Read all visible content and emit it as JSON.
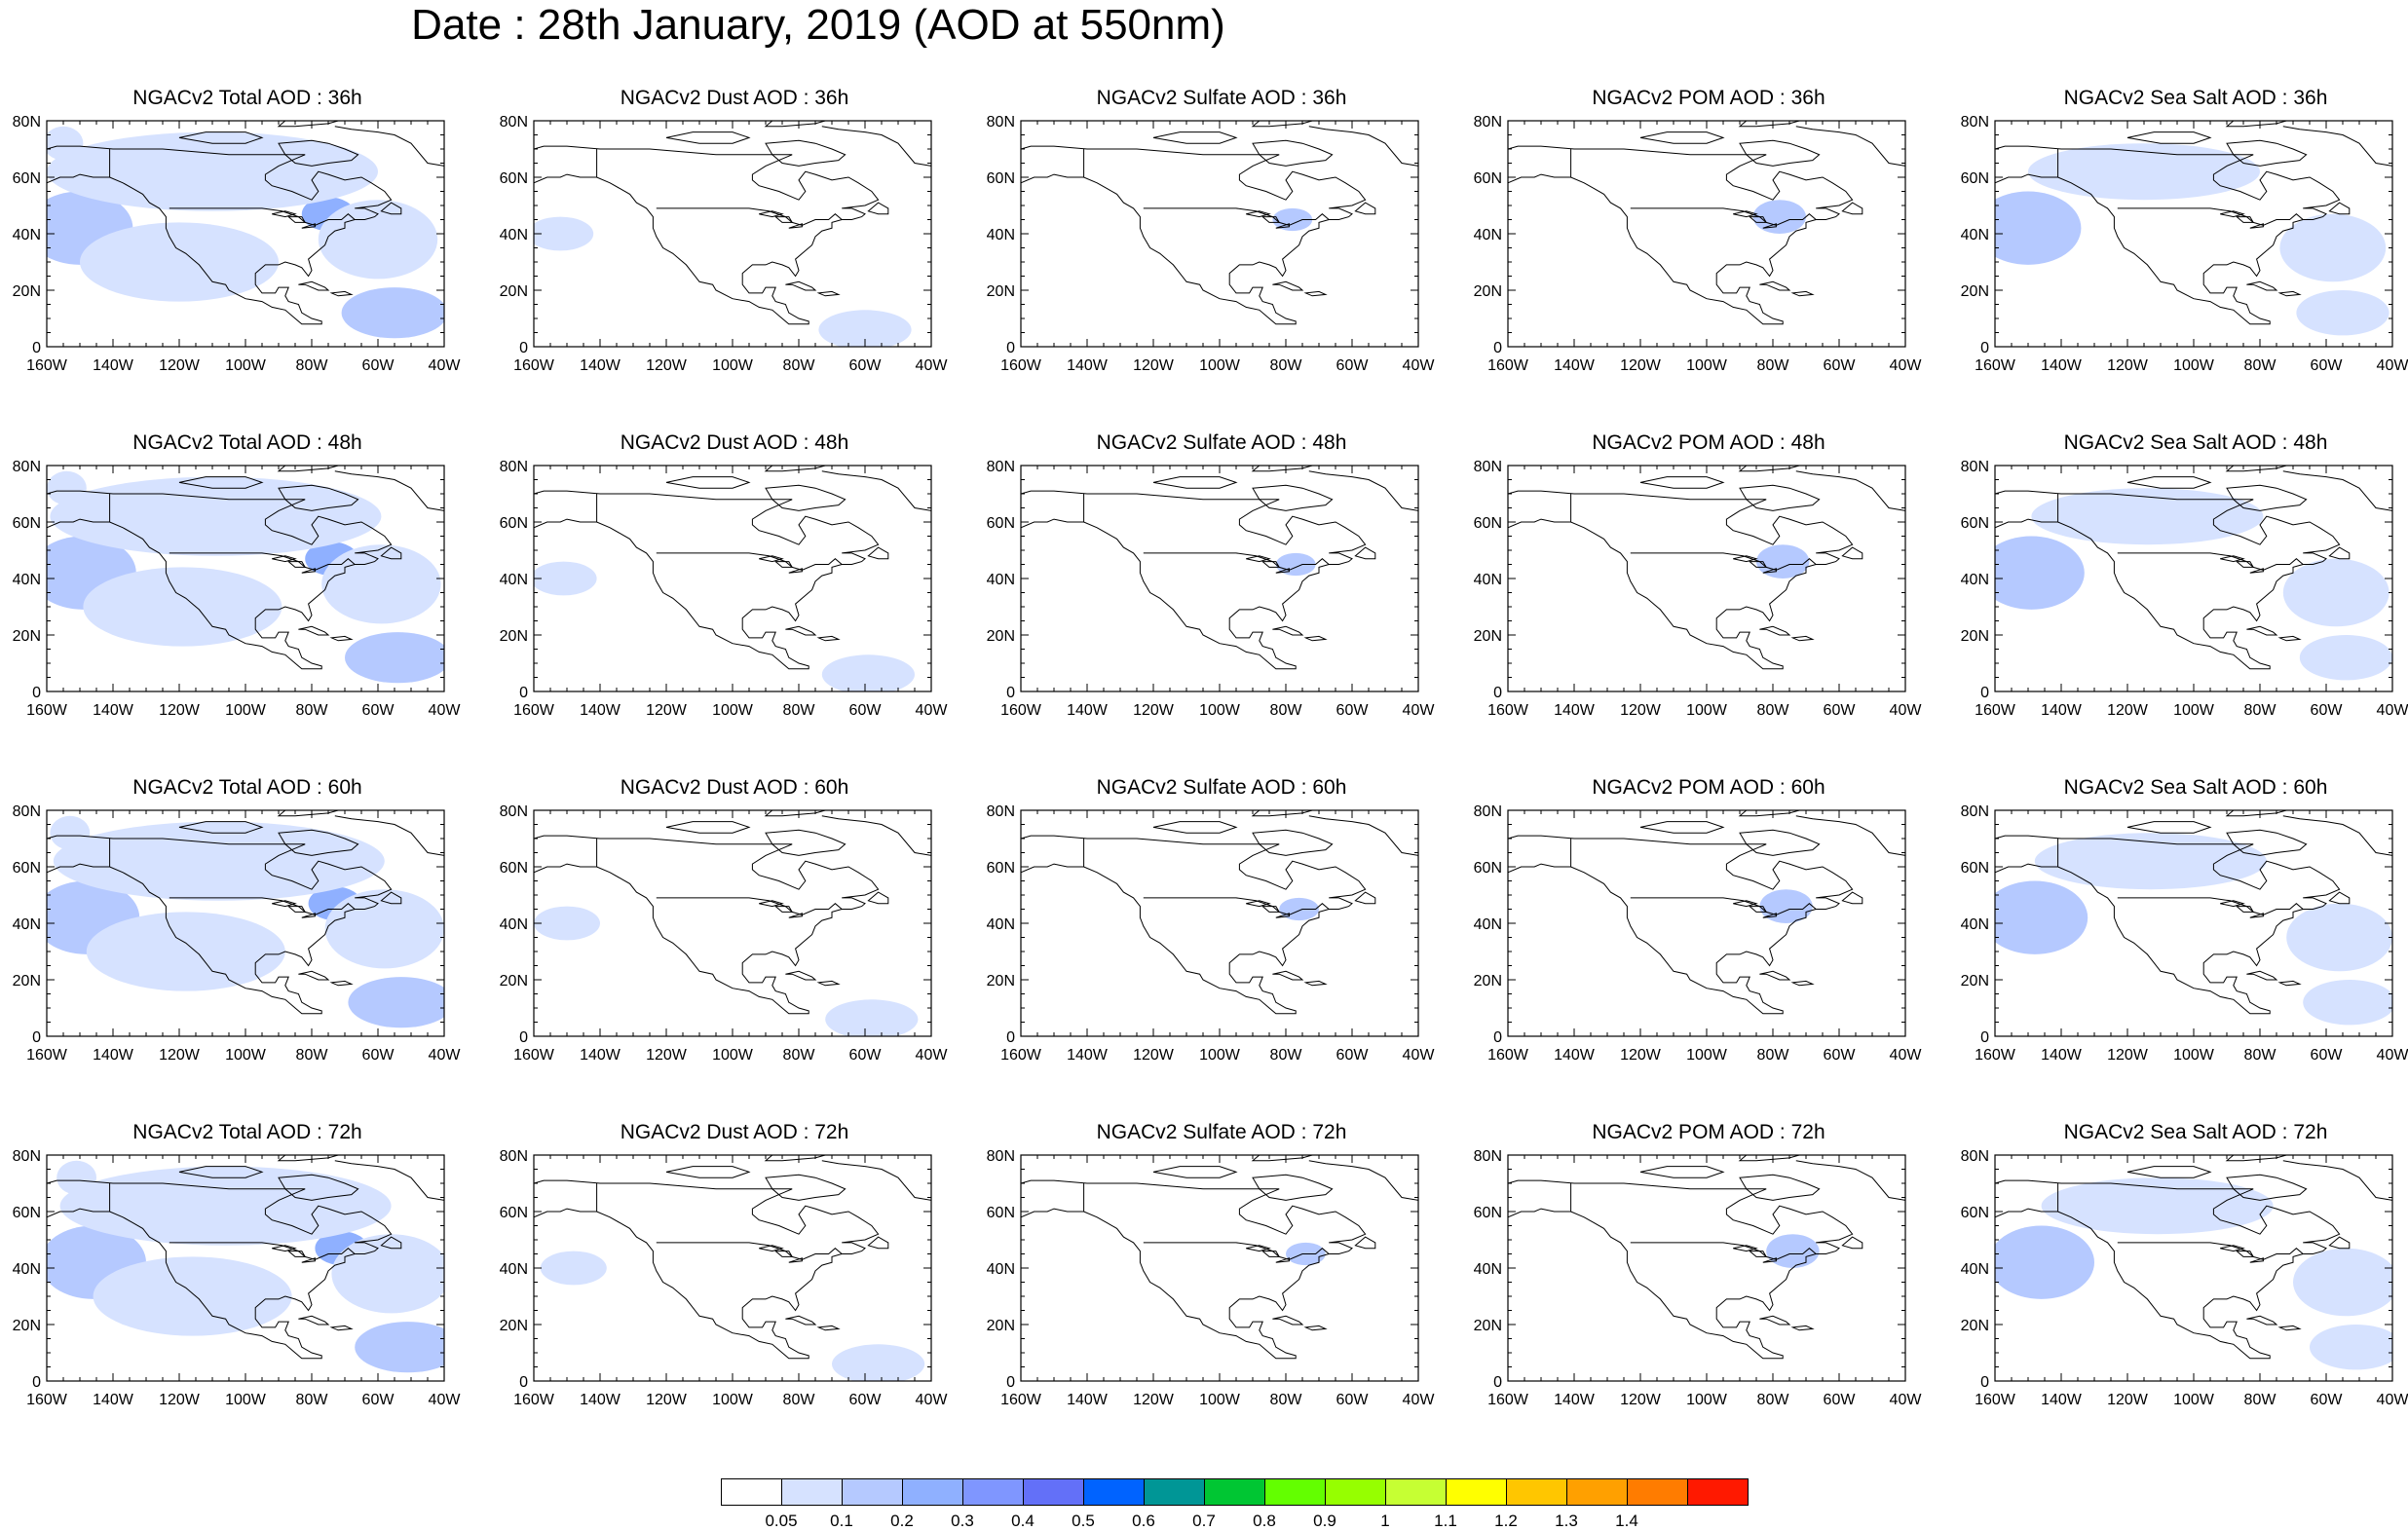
{
  "title": "Date : 28th January, 2019 (AOD at 550nm)",
  "axes": {
    "lon_ticks": [
      "160W",
      "140W",
      "120W",
      "100W",
      "80W",
      "60W",
      "40W"
    ],
    "lat_ticks": [
      "80N",
      "60N",
      "40N",
      "20N",
      "0"
    ],
    "lon_range": [
      -160,
      -40
    ],
    "lat_range": [
      0,
      80
    ]
  },
  "panels": [
    {
      "title": "NGACv2 Total AOD : 36h",
      "species": "total",
      "hour": 36
    },
    {
      "title": "NGACv2 Dust AOD : 36h",
      "species": "dust",
      "hour": 36
    },
    {
      "title": "NGACv2 Sulfate AOD : 36h",
      "species": "sulfate",
      "hour": 36
    },
    {
      "title": "NGACv2 POM AOD : 36h",
      "species": "pom",
      "hour": 36
    },
    {
      "title": "NGACv2 Sea Salt AOD : 36h",
      "species": "seasalt",
      "hour": 36
    },
    {
      "title": "NGACv2 Total AOD : 48h",
      "species": "total",
      "hour": 48
    },
    {
      "title": "NGACv2 Dust AOD : 48h",
      "species": "dust",
      "hour": 48
    },
    {
      "title": "NGACv2 Sulfate AOD : 48h",
      "species": "sulfate",
      "hour": 48
    },
    {
      "title": "NGACv2 POM AOD : 48h",
      "species": "pom",
      "hour": 48
    },
    {
      "title": "NGACv2 Sea Salt AOD : 48h",
      "species": "seasalt",
      "hour": 48
    },
    {
      "title": "NGACv2 Total AOD : 60h",
      "species": "total",
      "hour": 60
    },
    {
      "title": "NGACv2 Dust AOD : 60h",
      "species": "dust",
      "hour": 60
    },
    {
      "title": "NGACv2 Sulfate AOD : 60h",
      "species": "sulfate",
      "hour": 60
    },
    {
      "title": "NGACv2 POM AOD : 60h",
      "species": "pom",
      "hour": 60
    },
    {
      "title": "NGACv2 Sea Salt AOD : 60h",
      "species": "seasalt",
      "hour": 60
    },
    {
      "title": "NGACv2 Total AOD : 72h",
      "species": "total",
      "hour": 72
    },
    {
      "title": "NGACv2 Dust AOD : 72h",
      "species": "dust",
      "hour": 72
    },
    {
      "title": "NGACv2 Sulfate AOD : 72h",
      "species": "sulfate",
      "hour": 72
    },
    {
      "title": "NGACv2 POM AOD : 72h",
      "species": "pom",
      "hour": 72
    },
    {
      "title": "NGACv2 Sea Salt  AOD : 72h",
      "species": "seasalt",
      "hour": 72
    }
  ],
  "colorbar": {
    "labels": [
      "0.05",
      "0.1",
      "0.2",
      "0.3",
      "0.4",
      "0.5",
      "0.6",
      "0.7",
      "0.8",
      "0.9",
      "1",
      "1.1",
      "1.2",
      "1.3",
      "1.4"
    ],
    "colors": [
      "#ffffff",
      "#d6e2ff",
      "#b5c9ff",
      "#8fb0ff",
      "#7f96ff",
      "#6370f8",
      "#0063ff",
      "#009696",
      "#00c633",
      "#63ff00",
      "#96ff00",
      "#c6ff33",
      "#ffff00",
      "#ffc600",
      "#ffa000",
      "#ff7c00",
      "#ff1900"
    ]
  },
  "features": {
    "blobs": {
      "total": [
        {
          "lon": -152,
          "lat": 42,
          "rx": 8,
          "ry": 8,
          "level": 4
        },
        {
          "lon": -150,
          "lat": 42,
          "rx": 16,
          "ry": 13,
          "level": 2
        },
        {
          "lon": -75,
          "lat": 47,
          "rx": 8,
          "ry": 6,
          "level": 3
        },
        {
          "lon": -60,
          "lat": 38,
          "rx": 18,
          "ry": 14,
          "level": 1
        },
        {
          "lon": -110,
          "lat": 62,
          "rx": 50,
          "ry": 14,
          "level": 1
        },
        {
          "lon": -120,
          "lat": 30,
          "rx": 30,
          "ry": 14,
          "level": 1
        },
        {
          "lon": -55,
          "lat": 12,
          "rx": 16,
          "ry": 9,
          "level": 2
        },
        {
          "lon": -155,
          "lat": 72,
          "rx": 6,
          "ry": 6,
          "level": 1
        }
      ],
      "dust": [
        {
          "lon": -60,
          "lat": 6,
          "rx": 14,
          "ry": 7,
          "level": 1
        },
        {
          "lon": -152,
          "lat": 40,
          "rx": 10,
          "ry": 6,
          "level": 1
        }
      ],
      "sulfate": [
        {
          "lon": -78,
          "lat": 45,
          "rx": 6,
          "ry": 4,
          "level": 2
        }
      ],
      "pom": [
        {
          "lon": -78,
          "lat": 46,
          "rx": 8,
          "ry": 6,
          "level": 2
        }
      ],
      "seasalt": [
        {
          "lon": -152,
          "lat": 42,
          "rx": 8,
          "ry": 8,
          "level": 4
        },
        {
          "lon": -150,
          "lat": 42,
          "rx": 16,
          "ry": 13,
          "level": 2
        },
        {
          "lon": -58,
          "lat": 35,
          "rx": 16,
          "ry": 12,
          "level": 1
        },
        {
          "lon": -115,
          "lat": 62,
          "rx": 35,
          "ry": 10,
          "level": 1
        },
        {
          "lon": -55,
          "lat": 12,
          "rx": 14,
          "ry": 8,
          "level": 1
        }
      ]
    },
    "hour_shift_lon": {
      "36": 0,
      "48": 1,
      "60": 2,
      "72": 4
    }
  }
}
